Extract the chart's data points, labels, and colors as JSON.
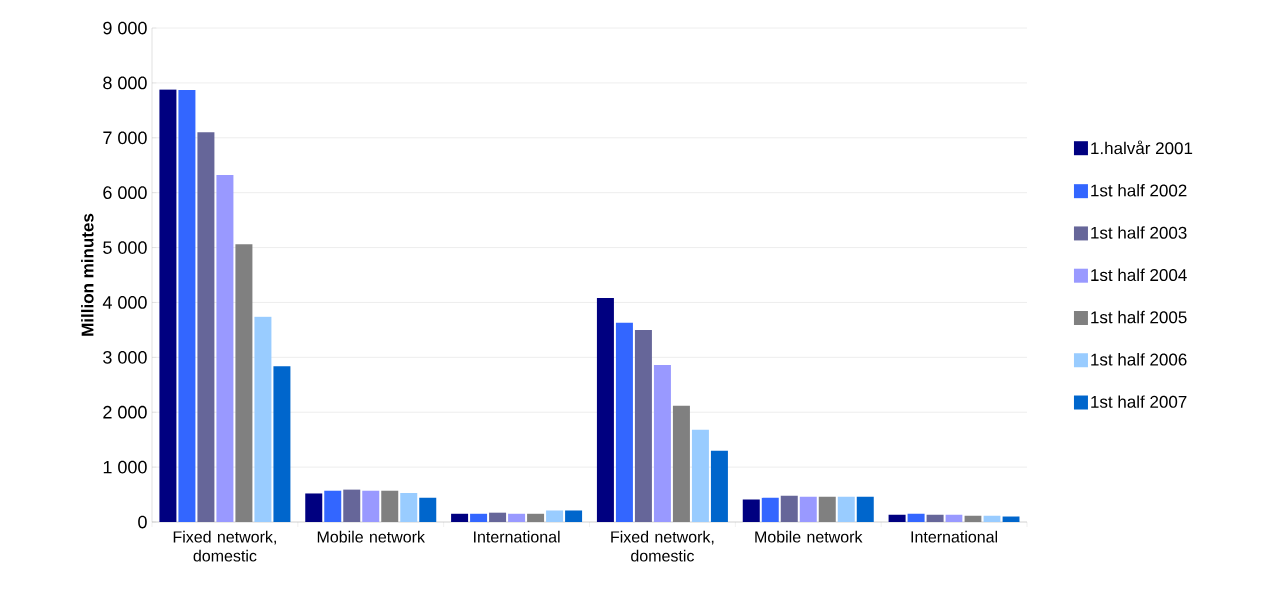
{
  "chart_data": {
    "type": "bar",
    "ylabel": "Million minutes",
    "categories": [
      "Fixed network, domestic",
      "Mobile network",
      "International",
      "Fixed network, domestic",
      "Mobile network",
      "International"
    ],
    "series": [
      {
        "name": "1.halvår 2001",
        "color": "#000080",
        "values": [
          7880,
          520,
          150,
          4080,
          410,
          130
        ]
      },
      {
        "name": "1st half 2002",
        "color": "#3366ff",
        "values": [
          7870,
          570,
          150,
          3630,
          440,
          150
        ]
      },
      {
        "name": "1st half 2003",
        "color": "#666699",
        "values": [
          7100,
          590,
          170,
          3500,
          480,
          130
        ]
      },
      {
        "name": "1st half 2004",
        "color": "#9999ff",
        "values": [
          6320,
          570,
          150,
          2860,
          460,
          130
        ]
      },
      {
        "name": "1st half 2005",
        "color": "#808080",
        "values": [
          5060,
          570,
          150,
          2120,
          460,
          115
        ]
      },
      {
        "name": "1st half 2006",
        "color": "#99ccff",
        "values": [
          3740,
          530,
          210,
          1680,
          460,
          115
        ]
      },
      {
        "name": "1st half 2007",
        "color": "#0066cc",
        "values": [
          2840,
          440,
          210,
          1300,
          460,
          100
        ]
      }
    ],
    "ylim": [
      0,
      9000
    ],
    "yticks": [
      {
        "value": 0,
        "label": "0"
      },
      {
        "value": 1000,
        "label": "1 000"
      },
      {
        "value": 2000,
        "label": "2 000"
      },
      {
        "value": 3000,
        "label": "3 000"
      },
      {
        "value": 4000,
        "label": "4 000"
      },
      {
        "value": 5000,
        "label": "5 000"
      },
      {
        "value": 6000,
        "label": "6 000"
      },
      {
        "value": 7000,
        "label": "7 000"
      },
      {
        "value": 8000,
        "label": "8 000"
      },
      {
        "value": 9000,
        "label": "9 000"
      }
    ],
    "grid": "y",
    "legend": "right"
  }
}
